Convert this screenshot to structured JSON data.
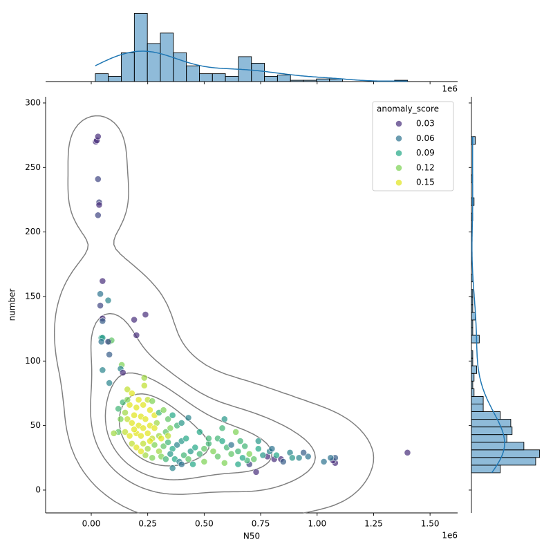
{
  "chart_data": [
    {
      "type": "scatter",
      "xlabel": "N50",
      "ylabel": "number",
      "x_offset_label": "1e6",
      "xlim": [
        -202000,
        1622000
      ],
      "ylim": [
        -17.7,
        304.8
      ],
      "xticks": [
        {
          "value": 0,
          "label": "0.00"
        },
        {
          "value": 250000,
          "label": "0.25"
        },
        {
          "value": 500000,
          "label": "0.50"
        },
        {
          "value": 750000,
          "label": "0.75"
        },
        {
          "value": 1000000,
          "label": "1.00"
        },
        {
          "value": 1250000,
          "label": "1.25"
        },
        {
          "value": 1500000,
          "label": "1.50"
        }
      ],
      "yticks": [
        0,
        50,
        100,
        150,
        200,
        250,
        300
      ],
      "legend": {
        "title": "anomaly_score",
        "position": "upper right",
        "values": [
          0.03,
          0.06,
          0.09,
          0.12,
          0.15
        ],
        "colors": [
          "#472d7b",
          "#2c728e",
          "#21a685",
          "#7ad151",
          "#e0e41a"
        ]
      },
      "contour_color": "#808080",
      "series": {
        "x": [
          20000,
          25000,
          30000,
          30000,
          35000,
          35000,
          30000,
          50000,
          40000,
          75000,
          40000,
          50000,
          50000,
          190000,
          240000,
          200000,
          45000,
          50000,
          45000,
          80000,
          90000,
          75000,
          80000,
          135000,
          130000,
          140000,
          50000,
          80000,
          235000,
          235000,
          1400000,
          1080000,
          1070000,
          1080000,
          1060000,
          1030000,
          960000,
          920000,
          940000,
          880000,
          890000,
          840000,
          810000,
          780000,
          730000,
          700000,
          690000,
          650000,
          590000,
          640000,
          560000,
          160000,
          180000,
          210000,
          250000,
          270000,
          140000,
          170000,
          200000,
          230000,
          260000,
          150000,
          190000,
          220000,
          240000,
          280000,
          300000,
          320000,
          160000,
          180000,
          210000,
          230000,
          260000,
          290000,
          340000,
          360000,
          120000,
          130000,
          150000,
          170000,
          200000,
          220000,
          250000,
          270000,
          300000,
          330000,
          350000,
          380000,
          400000,
          430000,
          120000,
          180000,
          200000,
          230000,
          250000,
          280000,
          300000,
          320000,
          340000,
          360000,
          380000,
          400000,
          420000,
          240000,
          270000,
          310000,
          330000,
          350000,
          370000,
          390000,
          410000,
          440000,
          460000,
          480000,
          500000,
          520000,
          540000,
          560000,
          580000,
          600000,
          620000,
          650000,
          670000,
          680000,
          700000,
          720000,
          740000,
          760000,
          790000,
          820000,
          850000,
          450000,
          500000,
          360000,
          400000,
          430000,
          580000,
          590000,
          480000,
          520000,
          620000,
          660000,
          740000,
          800000,
          280000,
          310000,
          190000,
          340000,
          260000,
          220000,
          160000,
          100000
        ],
        "y": [
          270,
          271,
          274,
          241,
          223,
          221,
          213,
          162,
          152,
          147,
          143,
          133,
          131,
          132,
          136,
          120,
          118,
          118,
          115,
          115,
          116,
          115,
          105,
          97,
          94,
          91,
          93,
          83,
          87,
          81,
          29,
          21,
          23,
          25,
          25,
          22,
          26,
          25,
          29,
          29,
          25,
          24,
          24,
          26,
          14,
          20,
          23,
          20,
          21,
          45,
          40,
          78,
          75,
          70,
          70,
          69,
          68,
          66,
          64,
          66,
          62,
          60,
          58,
          57,
          55,
          58,
          60,
          62,
          55,
          52,
          50,
          48,
          50,
          52,
          55,
          58,
          63,
          55,
          45,
          42,
          44,
          42,
          44,
          40,
          42,
          45,
          48,
          50,
          52,
          56,
          45,
          36,
          33,
          36,
          32,
          35,
          30,
          34,
          37,
          32,
          35,
          38,
          40,
          27,
          25,
          26,
          24,
          28,
          24,
          22,
          27,
          30,
          33,
          28,
          32,
          36,
          30,
          26,
          38,
          33,
          28,
          30,
          25,
          34,
          28,
          24,
          32,
          27,
          30,
          27,
          22,
          20,
          22,
          17,
          20,
          24,
          48,
          55,
          45,
          40,
          35,
          38,
          38,
          32,
          48,
          40,
          47,
          42,
          38,
          30,
          70,
          44
        ],
        "hue": [
          0.03,
          0.02,
          0.02,
          0.04,
          0.04,
          0.03,
          0.04,
          0.02,
          0.06,
          0.07,
          0.04,
          0.03,
          0.05,
          0.03,
          0.02,
          0.03,
          0.09,
          0.08,
          0.06,
          0.1,
          0.11,
          0.04,
          0.05,
          0.12,
          0.07,
          0.02,
          0.07,
          0.07,
          0.13,
          0.14,
          0.02,
          0.02,
          0.03,
          0.05,
          0.06,
          0.06,
          0.06,
          0.07,
          0.05,
          0.07,
          0.08,
          0.02,
          0.03,
          0.03,
          0.03,
          0.04,
          0.1,
          0.09,
          0.12,
          0.12,
          0.1,
          0.14,
          0.15,
          0.15,
          0.14,
          0.12,
          0.1,
          0.15,
          0.15,
          0.16,
          0.16,
          0.13,
          0.16,
          0.17,
          0.16,
          0.15,
          0.1,
          0.12,
          0.14,
          0.16,
          0.17,
          0.16,
          0.15,
          0.13,
          0.11,
          0.09,
          0.1,
          0.12,
          0.14,
          0.15,
          0.16,
          0.16,
          0.15,
          0.14,
          0.13,
          0.11,
          0.12,
          0.1,
          0.08,
          0.07,
          0.11,
          0.14,
          0.15,
          0.14,
          0.13,
          0.12,
          0.13,
          0.11,
          0.1,
          0.09,
          0.07,
          0.08,
          0.09,
          0.13,
          0.12,
          0.12,
          0.1,
          0.08,
          0.09,
          0.07,
          0.1,
          0.08,
          0.09,
          0.1,
          0.11,
          0.1,
          0.12,
          0.11,
          0.09,
          0.1,
          0.11,
          0.1,
          0.09,
          0.1,
          0.12,
          0.11,
          0.09,
          0.08,
          0.07,
          0.09,
          0.05,
          0.09,
          0.12,
          0.07,
          0.06,
          0.11,
          0.1,
          0.08,
          0.09,
          0.1,
          0.06,
          0.1,
          0.08,
          0.06,
          0.17,
          0.15,
          0.16,
          0.14,
          0.16,
          0.15,
          0.12,
          0.13
        ]
      }
    },
    {
      "type": "histogram",
      "orientation": "vertical",
      "x_offset_label": "1e6",
      "color": "#1f77b4",
      "ylim": [
        0,
        58
      ],
      "bins": [
        18000,
        75600,
        133200,
        190800,
        248400,
        306000,
        363600,
        421200,
        478800,
        536400,
        594000,
        651600,
        709200,
        766800,
        824400,
        882000,
        939600,
        997200,
        1054800,
        1112400,
        1170000,
        1227600,
        1285200,
        1342800,
        1400400
      ],
      "counts": [
        6,
        4,
        22,
        52,
        29,
        37,
        22,
        12,
        6,
        6,
        4,
        19,
        14,
        4,
        5,
        1,
        1,
        2,
        2,
        0,
        0,
        0,
        0,
        1
      ]
    },
    {
      "type": "histogram",
      "orientation": "horizontal",
      "color": "#1f77b4",
      "ylim": [
        0,
        58
      ],
      "bins": [
        13.4,
        19.32,
        25.24,
        31.16,
        37.08,
        43,
        48.92,
        54.84,
        60.76,
        66.68,
        72.6,
        78.52,
        84.44,
        90.36,
        96.28,
        102.2,
        108.12,
        114.04,
        119.96,
        125.88,
        131.8,
        137.72,
        143.64,
        149.56,
        155.48,
        161.4,
        167.32,
        173.24,
        179.16,
        185.08,
        191,
        196.92,
        202.84,
        208.76,
        214.68,
        220.6,
        226.52,
        232.44,
        238.36,
        244.28,
        250.2,
        256.12,
        262.04,
        267.96,
        273.88
      ],
      "counts": [
        22,
        49,
        52,
        40,
        27,
        31,
        30,
        22,
        9,
        9,
        2,
        1,
        2,
        4,
        1,
        1,
        0,
        6,
        1,
        1,
        3,
        1,
        1,
        1,
        0,
        1,
        0,
        0,
        0,
        0,
        0,
        0,
        0,
        1,
        0,
        2,
        0,
        0,
        1,
        0,
        0,
        0,
        0,
        3
      ]
    }
  ]
}
